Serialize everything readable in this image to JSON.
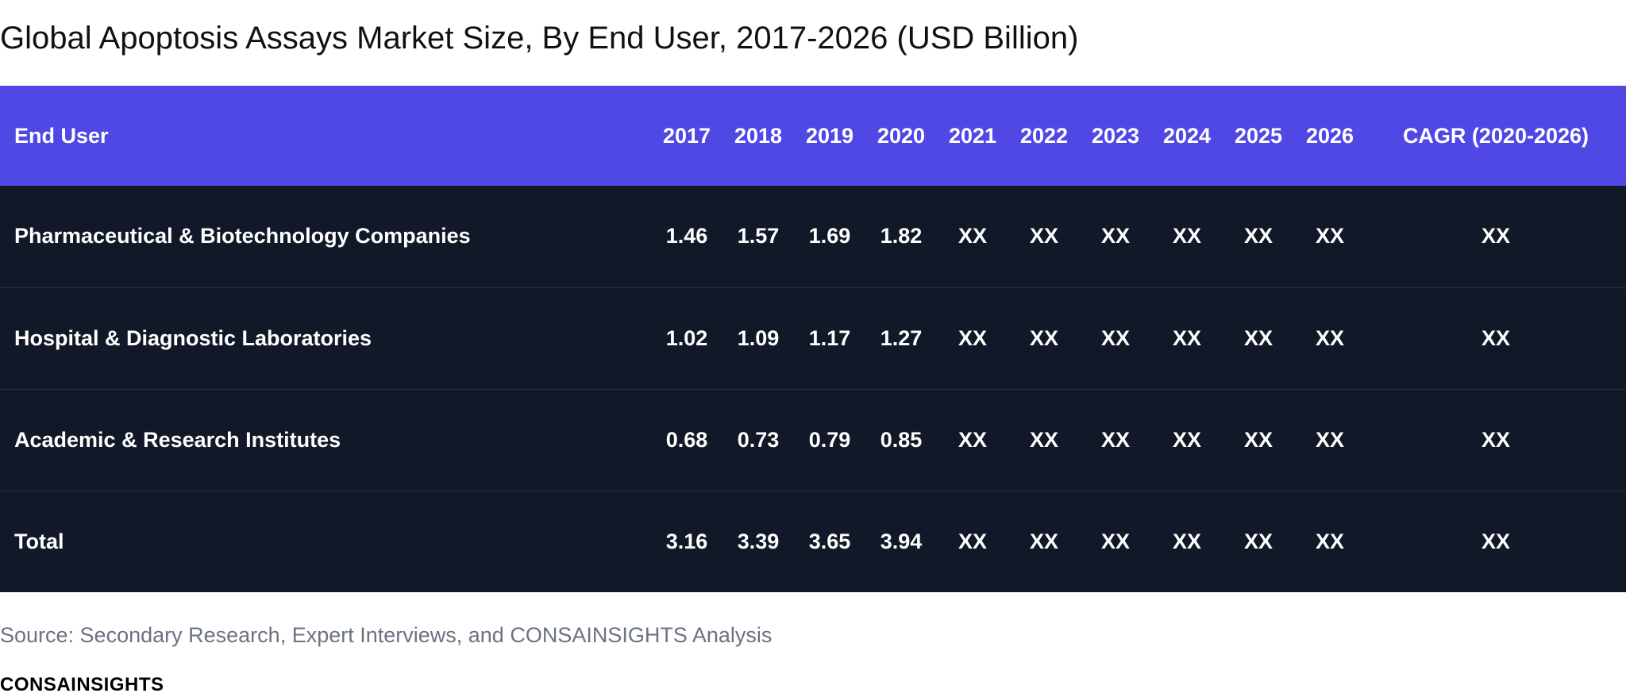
{
  "title": "Global Apoptosis Assays Market Size, By End User, 2017-2026 (USD Billion)",
  "source_note": "Source: Secondary Research, Expert Interviews, and CONSAINSIGHTS Analysis",
  "brand": "CONSAINSIGHTS",
  "colors": {
    "header_bg": "#5048E5",
    "body_bg": "#111827",
    "source_text": "#6B7280"
  },
  "chart_data": {
    "type": "table",
    "title": "Global Apoptosis Assays Market Size, By End User, 2017-2026 (USD Billion)",
    "columns": [
      "End User",
      "2017",
      "2018",
      "2019",
      "2020",
      "2021",
      "2022",
      "2023",
      "2024",
      "2025",
      "2026",
      "CAGR (2020-2026)"
    ],
    "rows": [
      [
        "Pharmaceutical & Biotechnology Companies",
        "1.46",
        "1.57",
        "1.69",
        "1.82",
        "XX",
        "XX",
        "XX",
        "XX",
        "XX",
        "XX",
        "XX"
      ],
      [
        "Hospital & Diagnostic Laboratories",
        "1.02",
        "1.09",
        "1.17",
        "1.27",
        "XX",
        "XX",
        "XX",
        "XX",
        "XX",
        "XX",
        "XX"
      ],
      [
        "Academic & Research Institutes",
        "0.68",
        "0.73",
        "0.79",
        "0.85",
        "XX",
        "XX",
        "XX",
        "XX",
        "XX",
        "XX",
        "XX"
      ],
      [
        "Total",
        "3.16",
        "3.39",
        "3.65",
        "3.94",
        "XX",
        "XX",
        "XX",
        "XX",
        "XX",
        "XX",
        "XX"
      ]
    ]
  }
}
